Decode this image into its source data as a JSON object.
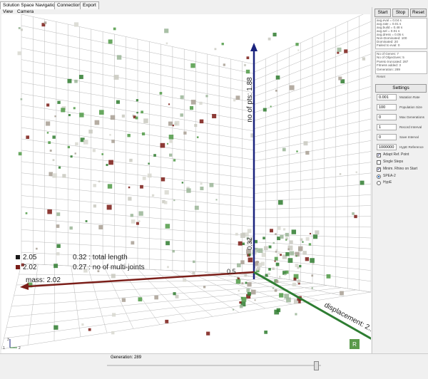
{
  "tabs": [
    "Solution Space Navigation",
    "Connections",
    "Export"
  ],
  "menu": [
    "View",
    "Camera"
  ],
  "buttons": [
    "Start",
    "Stop",
    "Reset"
  ],
  "stats": [
    "avg.eval = 0.04 s",
    "avg.rate = 0.01 s",
    "avg.build = 0.48 s",
    "avg.sel = 0.01 s",
    "avg.dress = 0.05 s",
    "Non-Dominated: 100",
    "Dominated: 20",
    "Failed to eval: 0"
  ],
  "info": [
    "No of Genes: 7",
    "No of Objectives: 5",
    "Pareto truncated: 287",
    "Fitness added: 3",
    "Generation: 289"
  ],
  "reset_label": "Reset",
  "settings_button": "Settings",
  "fields": [
    {
      "value": "0.001",
      "label": "Mutation Rate"
    },
    {
      "value": "100",
      "label": "Population Size"
    },
    {
      "value": "0",
      "label": "Max Generations"
    },
    {
      "value": "1",
      "label": "Record Interval"
    },
    {
      "value": "0",
      "label": "Save Interval"
    },
    {
      "value": "1000000",
      "label": "HypE Reference"
    }
  ],
  "checkboxes": [
    {
      "label": "Adapt Ref. Point",
      "checked": true
    },
    {
      "label": "Single Steps",
      "checked": false
    },
    {
      "label": "Minim. Rhino on Start",
      "checked": true
    }
  ],
  "radios": [
    {
      "label": "SPEA-2",
      "selected": true
    },
    {
      "label": "HypE",
      "selected": false
    }
  ],
  "viewport": {
    "axis_labels": {
      "y": "no of pts: 1.88",
      "x": "mass: 2.02",
      "z": "displacement: 2.14"
    },
    "tick_labels": [
      "0.32",
      "0.5"
    ],
    "legend": [
      {
        "value": "2.05",
        "label": "0.32 : total length"
      },
      {
        "value": "2.02",
        "label": "0.27 : no of multi-joints"
      }
    ],
    "gizmo": [
      "3",
      "1",
      "2"
    ],
    "logo": "R"
  },
  "generation_label": "Generation: 289"
}
